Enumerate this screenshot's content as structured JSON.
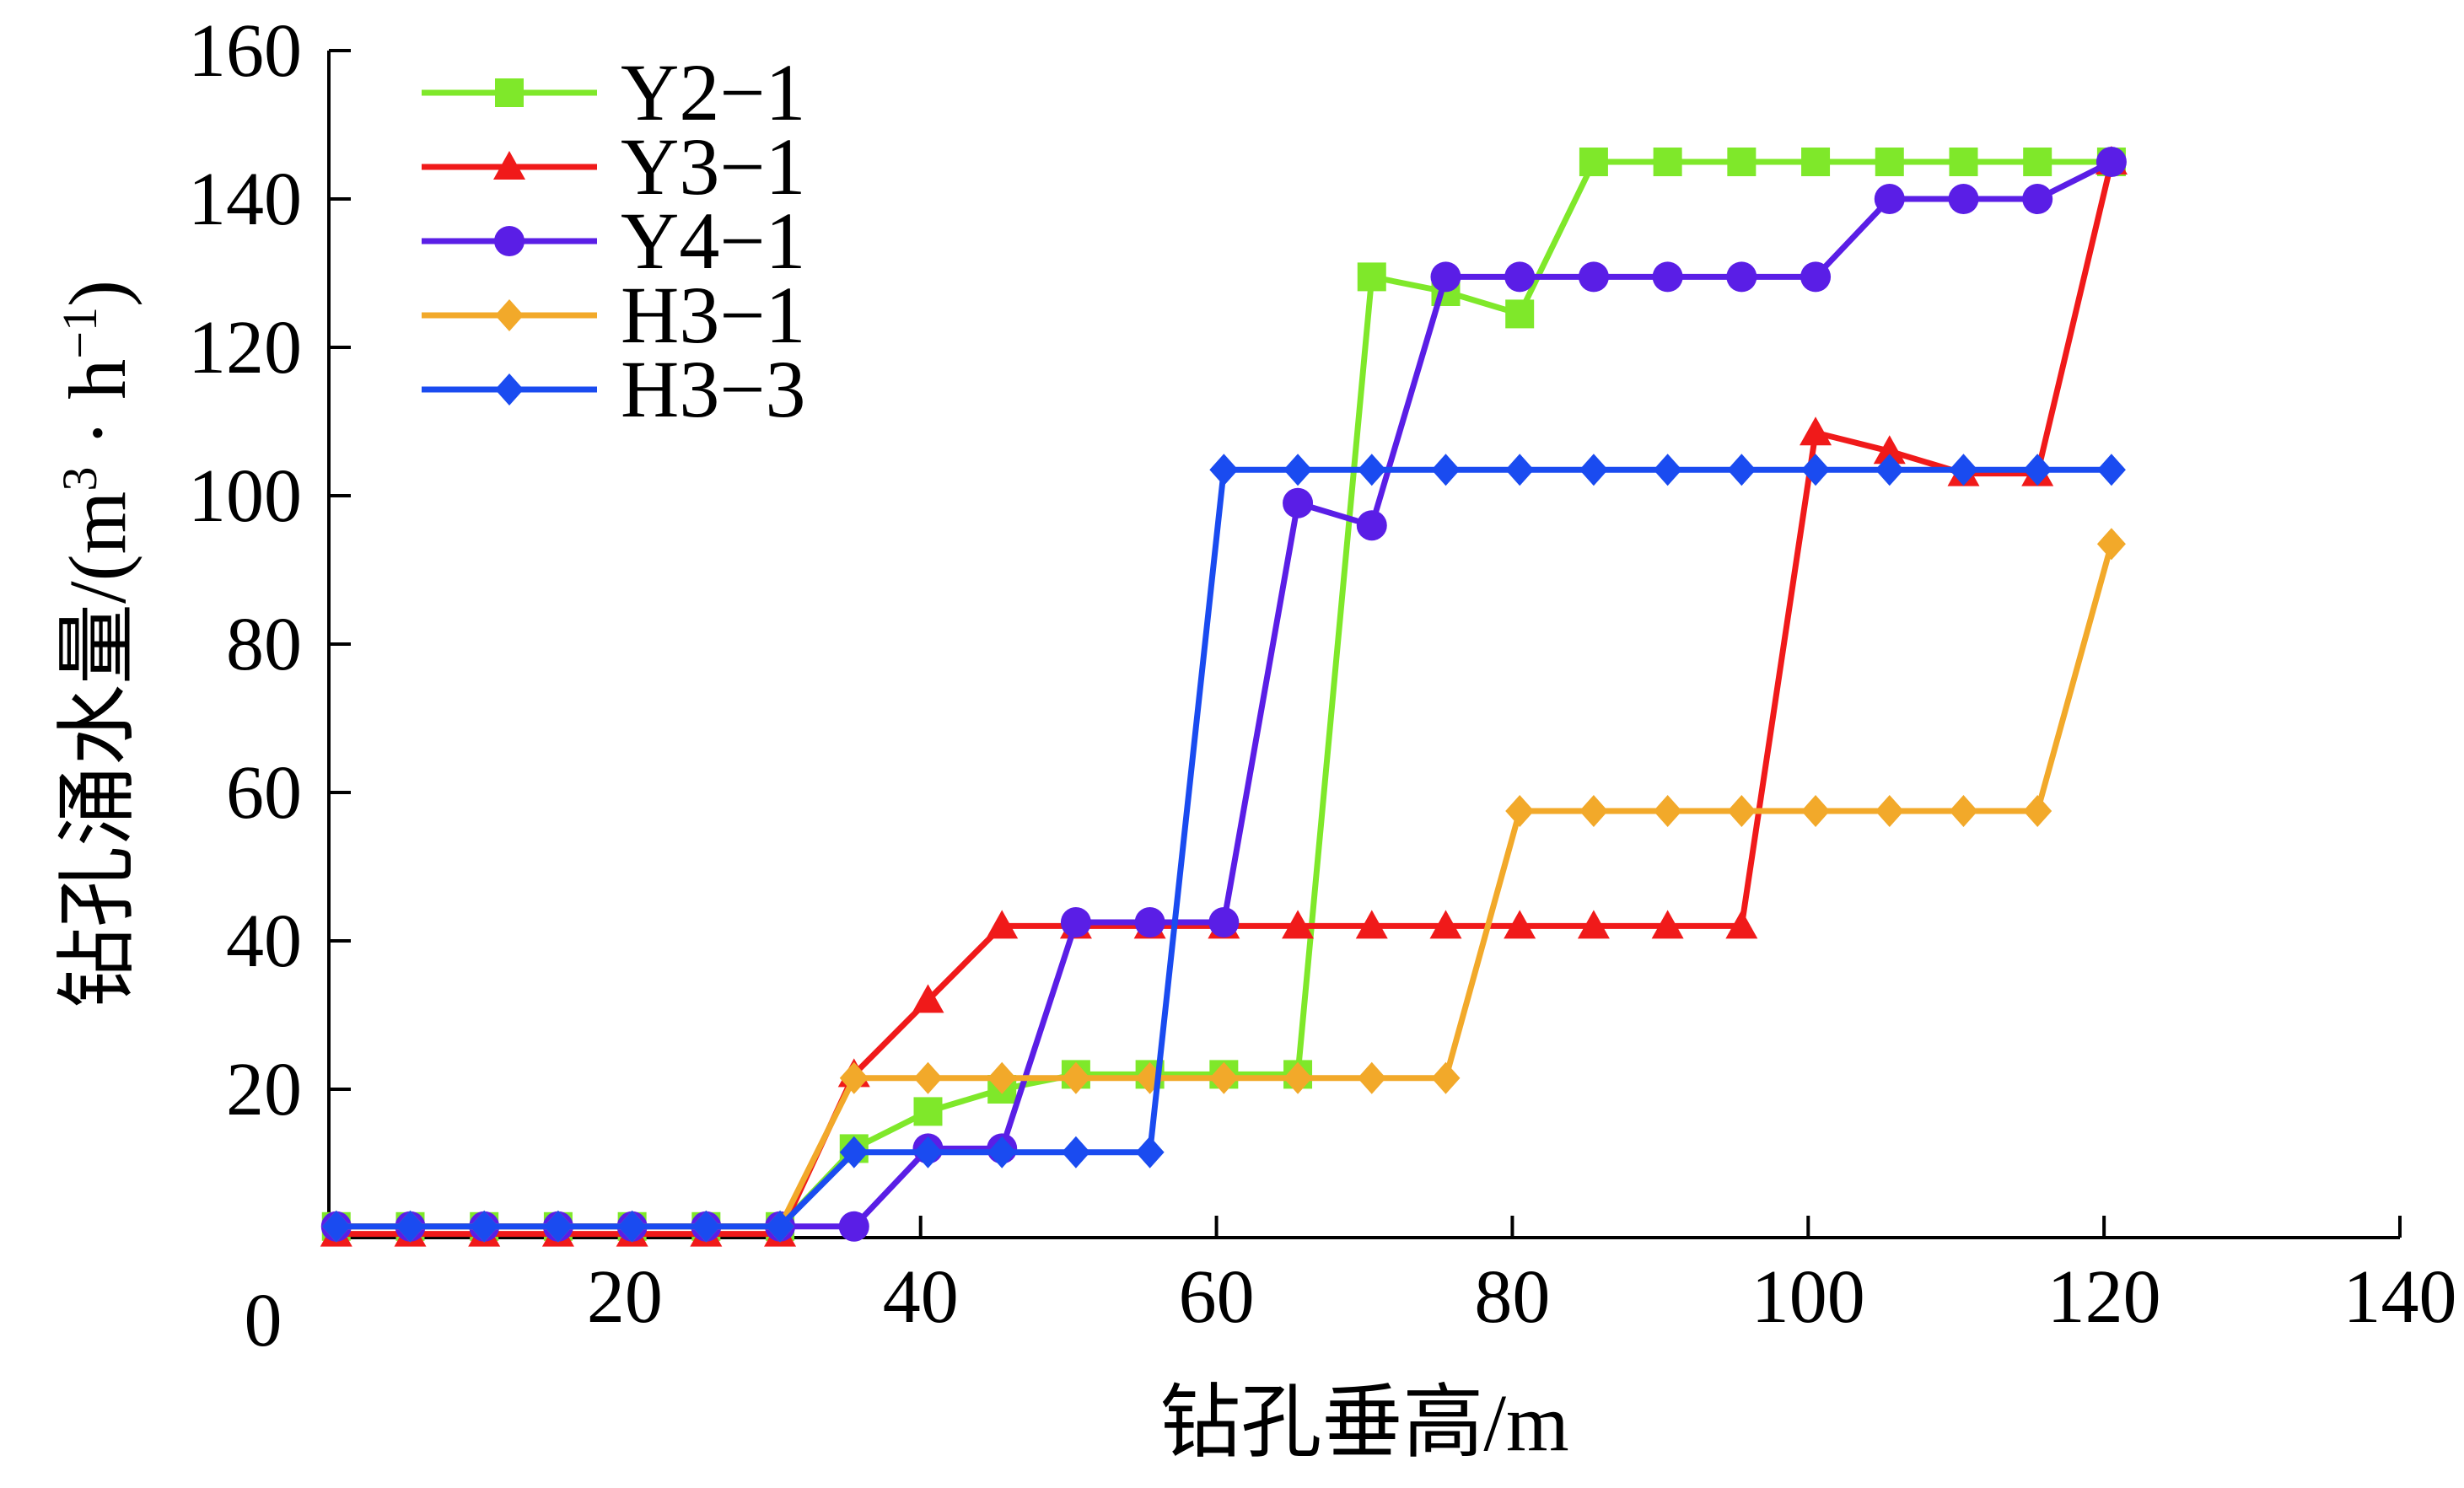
{
  "chart_data": {
    "type": "line",
    "xlabel": "钻孔垂高/m",
    "ylabel_main": "钻孔涌水量/(m",
    "ylabel_sup1": "3",
    "ylabel_mid": " · h",
    "ylabel_sup2": "−1",
    "ylabel_end": ")",
    "xlim": [
      0,
      140
    ],
    "ylim": [
      0,
      160
    ],
    "x_origin_label": "0",
    "x_ticks": [
      20,
      40,
      60,
      80,
      100,
      120,
      140
    ],
    "y_ticks": [
      20,
      40,
      60,
      80,
      100,
      120,
      140,
      160
    ],
    "legend_position": "top-left",
    "grid": false,
    "series": [
      {
        "name": "Y2−1",
        "color": "#7fe82a",
        "marker": "square",
        "points": [
          [
            0.5,
            1.5
          ],
          [
            5.5,
            1.5
          ],
          [
            10.5,
            1.5
          ],
          [
            15.5,
            1.5
          ],
          [
            20.5,
            1.5
          ],
          [
            25.5,
            1.5
          ],
          [
            30.5,
            1.5
          ],
          [
            35.5,
            12
          ],
          [
            40.5,
            17
          ],
          [
            45.5,
            20
          ],
          [
            50.5,
            22
          ],
          [
            55.5,
            22
          ],
          [
            60.5,
            22
          ],
          [
            65.5,
            22
          ],
          [
            70.5,
            129.5
          ],
          [
            75.5,
            127.5
          ],
          [
            80.5,
            124.5
          ],
          [
            85.5,
            145
          ],
          [
            90.5,
            145
          ],
          [
            95.5,
            145
          ],
          [
            100.5,
            145
          ],
          [
            105.5,
            145
          ],
          [
            110.5,
            145
          ],
          [
            115.5,
            145
          ],
          [
            120.5,
            145
          ]
        ]
      },
      {
        "name": "Y3−1",
        "color": "#f01a1a",
        "marker": "triangle",
        "points": [
          [
            0.5,
            0.5
          ],
          [
            5.5,
            0.5
          ],
          [
            10.5,
            0.5
          ],
          [
            15.5,
            0.5
          ],
          [
            20.5,
            0.5
          ],
          [
            25.5,
            0.5
          ],
          [
            30.5,
            0.5
          ],
          [
            35.5,
            22
          ],
          [
            40.5,
            32
          ],
          [
            45.5,
            42
          ],
          [
            50.5,
            42
          ],
          [
            55.5,
            42
          ],
          [
            60.5,
            42
          ],
          [
            65.5,
            42
          ],
          [
            70.5,
            42
          ],
          [
            75.5,
            42
          ],
          [
            80.5,
            42
          ],
          [
            85.5,
            42
          ],
          [
            90.5,
            42
          ],
          [
            95.5,
            42
          ],
          [
            100.5,
            108.5
          ],
          [
            105.5,
            106
          ],
          [
            110.5,
            103
          ],
          [
            115.5,
            103
          ],
          [
            120.5,
            145
          ]
        ]
      },
      {
        "name": "Y4−1",
        "color": "#5a1ee6",
        "marker": "circle",
        "points": [
          [
            0.5,
            1.5
          ],
          [
            5.5,
            1.5
          ],
          [
            10.5,
            1.5
          ],
          [
            15.5,
            1.5
          ],
          [
            20.5,
            1.5
          ],
          [
            25.5,
            1.5
          ],
          [
            30.5,
            1.5
          ],
          [
            35.5,
            1.5
          ],
          [
            40.5,
            12
          ],
          [
            45.5,
            12
          ],
          [
            50.5,
            42.5
          ],
          [
            55.5,
            42.5
          ],
          [
            60.5,
            42.5
          ],
          [
            65.5,
            99
          ],
          [
            70.5,
            96
          ],
          [
            75.5,
            129.5
          ],
          [
            80.5,
            129.5
          ],
          [
            85.5,
            129.5
          ],
          [
            90.5,
            129.5
          ],
          [
            95.5,
            129.5
          ],
          [
            100.5,
            129.5
          ],
          [
            105.5,
            140
          ],
          [
            110.5,
            140
          ],
          [
            115.5,
            140
          ],
          [
            120.5,
            145
          ]
        ]
      },
      {
        "name": "H3−1",
        "color": "#f2a92a",
        "marker": "diamond",
        "points": [
          [
            0.5,
            1.5
          ],
          [
            5.5,
            1.5
          ],
          [
            10.5,
            1.5
          ],
          [
            15.5,
            1.5
          ],
          [
            20.5,
            1.5
          ],
          [
            25.5,
            1.5
          ],
          [
            30.5,
            1.5
          ],
          [
            35.5,
            21.5
          ],
          [
            40.5,
            21.5
          ],
          [
            45.5,
            21.5
          ],
          [
            50.5,
            21.5
          ],
          [
            55.5,
            21.5
          ],
          [
            60.5,
            21.5
          ],
          [
            65.5,
            21.5
          ],
          [
            70.5,
            21.5
          ],
          [
            75.5,
            21.5
          ],
          [
            80.5,
            57.5
          ],
          [
            85.5,
            57.5
          ],
          [
            90.5,
            57.5
          ],
          [
            95.5,
            57.5
          ],
          [
            100.5,
            57.5
          ],
          [
            105.5,
            57.5
          ],
          [
            110.5,
            57.5
          ],
          [
            115.5,
            57.5
          ],
          [
            120.5,
            93.5
          ]
        ]
      },
      {
        "name": "H3−3",
        "color": "#1a4bf0",
        "marker": "diamond",
        "points": [
          [
            0.5,
            1.5
          ],
          [
            5.5,
            1.5
          ],
          [
            10.5,
            1.5
          ],
          [
            15.5,
            1.5
          ],
          [
            20.5,
            1.5
          ],
          [
            25.5,
            1.5
          ],
          [
            30.5,
            1.5
          ],
          [
            35.5,
            11.5
          ],
          [
            40.5,
            11.5
          ],
          [
            45.5,
            11.5
          ],
          [
            50.5,
            11.5
          ],
          [
            55.5,
            11.5
          ],
          [
            60.5,
            103.5
          ],
          [
            65.5,
            103.5
          ],
          [
            70.5,
            103.5
          ],
          [
            75.5,
            103.5
          ],
          [
            80.5,
            103.5
          ],
          [
            85.5,
            103.5
          ],
          [
            90.5,
            103.5
          ],
          [
            95.5,
            103.5
          ],
          [
            100.5,
            103.5
          ],
          [
            105.5,
            103.5
          ],
          [
            110.5,
            103.5
          ],
          [
            115.5,
            103.5
          ],
          [
            120.5,
            103.5
          ]
        ]
      }
    ]
  }
}
